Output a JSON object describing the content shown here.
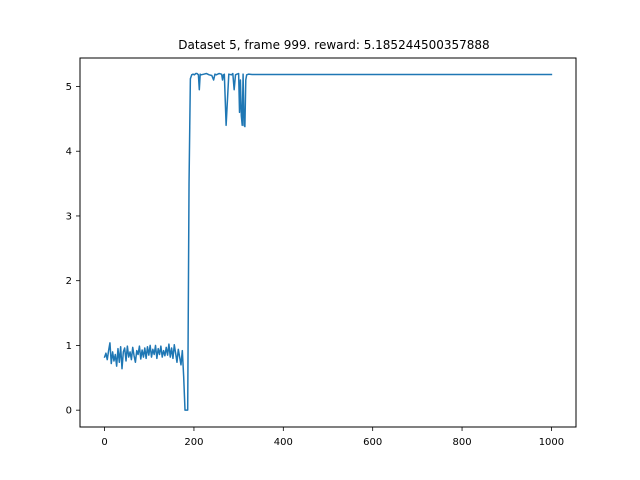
{
  "chart_data": {
    "type": "line",
    "title": "Dataset 5, frame 999. reward: 5.185244500357888",
    "xlabel": "",
    "ylabel": "",
    "xlim": [
      -55,
      1055
    ],
    "ylim": [
      -0.26,
      5.44
    ],
    "xticks": [
      0,
      200,
      400,
      600,
      800,
      1000
    ],
    "yticks": [
      0,
      1,
      2,
      3,
      4,
      5
    ],
    "xtick_labels": [
      "0",
      "200",
      "400",
      "600",
      "800",
      "1000"
    ],
    "ytick_labels": [
      "0",
      "1",
      "2",
      "3",
      "4",
      "5"
    ],
    "grid": false,
    "legend": "none",
    "series": [
      {
        "color": "#1f77b4",
        "x": [
          0,
          3,
          6,
          9,
          12,
          15,
          18,
          21,
          24,
          27,
          30,
          33,
          36,
          39,
          42,
          45,
          48,
          51,
          54,
          57,
          60,
          63,
          66,
          69,
          72,
          75,
          78,
          81,
          84,
          87,
          90,
          93,
          96,
          99,
          102,
          105,
          108,
          111,
          114,
          117,
          120,
          123,
          126,
          129,
          132,
          135,
          138,
          141,
          144,
          147,
          150,
          153,
          156,
          159,
          162,
          165,
          168,
          171,
          174,
          177,
          180,
          183,
          186,
          189,
          192,
          195,
          198,
          201,
          204,
          207,
          210,
          212,
          214,
          216,
          222,
          228,
          234,
          240,
          244,
          247,
          250,
          256,
          262,
          264,
          266,
          268,
          272,
          278,
          284,
          287,
          290,
          293,
          296,
          300,
          302,
          304,
          306,
          308,
          310,
          312,
          314,
          316,
          318,
          322,
          330,
          400,
          600,
          800,
          1000
        ],
        "y": [
          0.82,
          0.88,
          0.78,
          0.92,
          1.04,
          0.72,
          0.9,
          0.76,
          0.86,
          0.68,
          0.95,
          0.74,
          0.98,
          0.64,
          0.9,
          0.96,
          0.76,
          0.99,
          0.82,
          0.9,
          0.78,
          0.97,
          0.84,
          0.74,
          0.92,
          0.86,
          0.99,
          0.79,
          0.93,
          0.82,
          0.96,
          0.8,
          0.98,
          0.85,
          1.0,
          0.82,
          0.94,
          0.86,
          1.0,
          0.8,
          0.95,
          0.86,
          0.99,
          0.82,
          0.92,
          0.84,
          0.97,
          0.85,
          1.02,
          0.82,
          0.96,
          0.8,
          1.01,
          0.88,
          0.74,
          0.94,
          0.82,
          0.7,
          0.92,
          0.52,
          0.0,
          0.0,
          0.0,
          3.5,
          5.12,
          5.18,
          5.19,
          5.18,
          5.2,
          5.2,
          5.18,
          4.95,
          5.19,
          5.18,
          5.19,
          5.2,
          5.18,
          5.17,
          5.1,
          5.19,
          5.18,
          5.2,
          5.19,
          5.1,
          5.18,
          5.19,
          4.4,
          5.19,
          5.18,
          5.2,
          4.95,
          5.18,
          5.19,
          5.2,
          4.6,
          5.1,
          4.55,
          4.4,
          5.19,
          4.4,
          4.38,
          5.1,
          5.18,
          5.19,
          5.185,
          5.185,
          5.185,
          5.185,
          5.185
        ]
      }
    ]
  }
}
